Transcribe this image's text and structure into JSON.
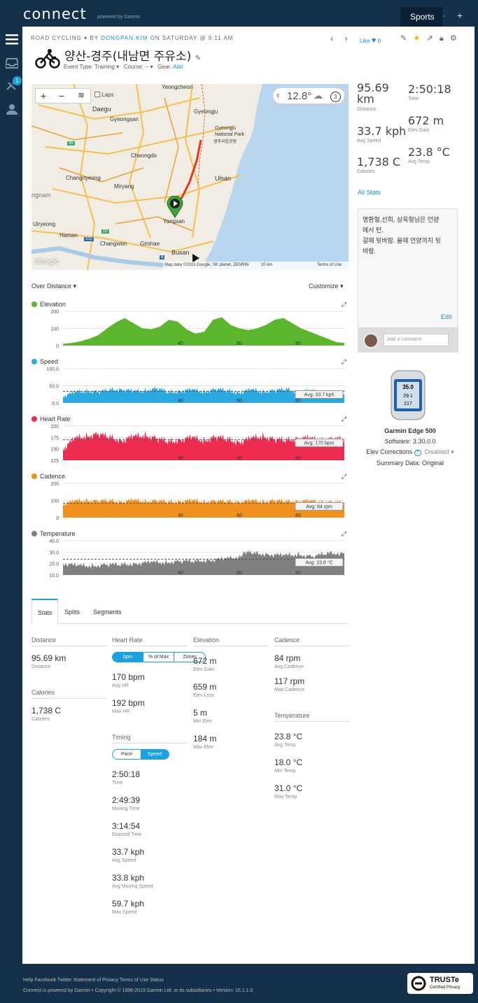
{
  "app": {
    "logo": "connect",
    "logo_sub": "powered by Garmin",
    "sports_label": "Sports",
    "sports_sep": "-",
    "plus": "+",
    "notif_count": "1"
  },
  "activity": {
    "type": "ROAD CYCLING",
    "by": "BY",
    "author": "DONGPAN.KIM",
    "when": "ON SATURDAY @ 9:11 AM",
    "title": "양산-경주(내남면 주유소)",
    "event_type": "Event Type: Training ▾",
    "course": "Course: -- ▾",
    "gear": "Gear:",
    "gear_add": "Add",
    "like": "Like",
    "like_count": "0"
  },
  "map": {
    "laps": "Laps",
    "temp": "12.8°",
    "weather_count": "3",
    "footer": "Map data ©2015 Google, SK planet, ZENRIN",
    "scale": "20 km",
    "terms": "Terms of Use",
    "google": "Google",
    "labels": [
      {
        "t": "Yeongcheon"
      },
      {
        "t": "Daegu"
      },
      {
        "t": "Gyeongju"
      },
      {
        "t": "Gyeongsan"
      },
      {
        "t": "Gyeongju National Park"
      },
      {
        "t": "경주국립공원"
      },
      {
        "t": "Cheongdo"
      },
      {
        "t": "Changnyeong"
      },
      {
        "t": "Miryang"
      },
      {
        "t": "Ulsan"
      },
      {
        "t": "ngnam"
      },
      {
        "t": "Uiryeong"
      },
      {
        "t": "Yangsan"
      },
      {
        "t": "Haman"
      },
      {
        "t": "Changwon"
      },
      {
        "t": "Gimhae"
      },
      {
        "t": "Busan"
      },
      {
        "t": "45"
      },
      {
        "t": "10"
      },
      {
        "t": "102"
      },
      {
        "t": "6"
      }
    ]
  },
  "summary": {
    "distance": "95.69 km",
    "distance_l": "Distance",
    "time": "2:50:18",
    "time_l": "Time",
    "elev_gain": "672 m",
    "elev_gain_l": "Elev Gain",
    "avg_speed": "33.7 kph",
    "avg_speed_l": "Avg Speed",
    "calories": "1,738 C",
    "calories_l": "Calories",
    "avg_temp": "23.8 °C",
    "avg_temp_l": "Avg Temp",
    "all_stats": "All Stats"
  },
  "notes": {
    "lines": [
      "명환형,선희, 상욱형님은 언양",
      "에서 턴.",
      "갈때 뒷바람. 올때 언양까지 뒷",
      "바람."
    ],
    "edit": "Edit",
    "comment_placeholder": "Add a comment."
  },
  "device": {
    "name": "Garmin Edge 500",
    "software": "Software: 3.30.0.0",
    "elev_corr": "Elev Corrections",
    "elev_help": "?",
    "elev_status": ": Disabled ▾",
    "summary": "Summary Data: Original",
    "screen_vals": [
      "35.0",
      "29.1",
      "217"
    ]
  },
  "charts_header": {
    "over_distance": "Over Distance ▾",
    "customize": "Customize ▾"
  },
  "chart_data": [
    {
      "type": "area",
      "title": "Elevation",
      "color": "#5bb52d",
      "yticks": [
        "200",
        "100",
        "0"
      ],
      "ylim": [
        0,
        200
      ],
      "xticks": [
        "40",
        "60",
        "80"
      ],
      "xlim": [
        0,
        95.69
      ],
      "x": [
        0,
        3,
        6,
        9,
        12,
        15,
        18,
        21,
        24,
        27,
        30,
        33,
        36,
        39,
        42,
        45,
        48,
        51,
        54,
        57,
        60,
        63,
        66,
        69,
        72,
        75,
        78,
        81,
        84,
        87,
        90,
        93,
        95.69
      ],
      "values": [
        10,
        15,
        25,
        40,
        60,
        100,
        135,
        160,
        130,
        100,
        95,
        110,
        150,
        140,
        95,
        70,
        80,
        150,
        165,
        120,
        100,
        90,
        100,
        120,
        150,
        160,
        130,
        100,
        80,
        60,
        40,
        20,
        15
      ],
      "avg": null,
      "avg_label": ""
    },
    {
      "type": "area",
      "title": "Speed",
      "color": "#29a9e0",
      "yticks": [
        "100.0",
        "50.0",
        "0.0"
      ],
      "ylim": [
        0,
        100
      ],
      "xticks": [
        "40",
        "60",
        "80"
      ],
      "xlim": [
        0,
        95.69
      ],
      "x": [
        0,
        4,
        8,
        12,
        16,
        20,
        24,
        28,
        32,
        36,
        40,
        44,
        48,
        52,
        56,
        60,
        64,
        68,
        72,
        76,
        80,
        84,
        88,
        92,
        95.69
      ],
      "values": [
        20,
        30,
        35,
        32,
        38,
        40,
        33,
        36,
        42,
        30,
        35,
        38,
        32,
        40,
        35,
        30,
        38,
        33,
        36,
        40,
        32,
        35,
        30,
        33,
        28
      ],
      "avg": 33.7,
      "avg_label": "Avg: 33.7 kph"
    },
    {
      "type": "area",
      "title": "Heart Rate",
      "color": "#ee2c50",
      "yticks": [
        "200",
        "175",
        "150",
        "125"
      ],
      "ylim": [
        125,
        200
      ],
      "xticks": [
        "40",
        "60",
        "80"
      ],
      "xlim": [
        0,
        95.69
      ],
      "x": [
        0,
        4,
        8,
        12,
        16,
        20,
        24,
        28,
        32,
        36,
        40,
        44,
        48,
        52,
        56,
        60,
        64,
        68,
        72,
        76,
        80,
        84,
        88,
        92,
        95.69
      ],
      "values": [
        150,
        172,
        178,
        182,
        175,
        168,
        176,
        180,
        172,
        165,
        170,
        174,
        168,
        176,
        170,
        165,
        172,
        178,
        170,
        168,
        174,
        172,
        168,
        172,
        170
      ],
      "avg": 170,
      "avg_label": "Avg: 170 bpm"
    },
    {
      "type": "area",
      "title": "Cadence",
      "color": "#ef9020",
      "yticks": [
        "200",
        "100",
        "0"
      ],
      "ylim": [
        0,
        200
      ],
      "xticks": [
        "40",
        "60",
        "80"
      ],
      "xlim": [
        0,
        95.69
      ],
      "x": [
        0,
        4,
        8,
        12,
        16,
        20,
        24,
        28,
        32,
        36,
        40,
        44,
        48,
        52,
        56,
        60,
        64,
        68,
        72,
        76,
        80,
        84,
        88,
        92,
        95.69
      ],
      "values": [
        80,
        95,
        100,
        96,
        98,
        92,
        100,
        95,
        97,
        90,
        95,
        98,
        93,
        96,
        94,
        92,
        97,
        95,
        98,
        94,
        96,
        95,
        92,
        90,
        85
      ],
      "avg": 84,
      "avg_label": "Avg: 84 rpm"
    },
    {
      "type": "area",
      "title": "Temperature",
      "color": "#808080",
      "yticks": [
        "40.0",
        "30.0",
        "20.0",
        "10.0"
      ],
      "ylim": [
        10,
        40
      ],
      "xticks": [
        "40",
        "60",
        "80"
      ],
      "xlim": [
        0,
        95.69
      ],
      "x": [
        0,
        5,
        10,
        15,
        20,
        25,
        30,
        35,
        40,
        45,
        50,
        55,
        60,
        62,
        65,
        70,
        75,
        80,
        85,
        90,
        95.69
      ],
      "values": [
        20,
        18,
        18,
        19,
        19,
        20,
        21,
        21,
        22,
        22,
        23,
        24,
        26,
        30,
        29,
        28,
        27,
        28,
        26,
        29,
        29
      ],
      "avg": 23.8,
      "avg_label": "Avg: 23.8 °C"
    }
  ],
  "tabs": {
    "stats": "Stats",
    "splits": "Splits",
    "segments": "Segments"
  },
  "stats": {
    "distance": {
      "h": "Distance",
      "items": [
        {
          "v": "95.69 km",
          "l": "Distance"
        }
      ]
    },
    "calories": {
      "h": "Calories",
      "items": [
        {
          "v": "1,738 C",
          "l": "Calories"
        }
      ]
    },
    "heart": {
      "h": "Heart Rate",
      "seg": [
        "bpm",
        "% of Max",
        "Zones"
      ],
      "items": [
        {
          "v": "170 bpm",
          "l": "Avg HR"
        },
        {
          "v": "192 bpm",
          "l": "Max HR"
        }
      ]
    },
    "timing": {
      "h": "Timing",
      "seg": [
        "Pace",
        "Speed"
      ],
      "items": [
        {
          "v": "2:50:18",
          "l": "Time"
        },
        {
          "v": "2:49:39",
          "l": "Moving Time"
        },
        {
          "v": "3:14:54",
          "l": "Elapsed Time"
        },
        {
          "v": "33.7 kph",
          "l": "Avg Speed"
        },
        {
          "v": "33.8 kph",
          "l": "Avg Moving Speed"
        },
        {
          "v": "59.7 kph",
          "l": "Max Speed"
        }
      ]
    },
    "elevation": {
      "h": "Elevation",
      "items": [
        {
          "v": "672 m",
          "l": "Elev Gain"
        },
        {
          "v": "659 m",
          "l": "Elev Loss"
        },
        {
          "v": "5 m",
          "l": "Min Elev"
        },
        {
          "v": "184 m",
          "l": "Max Elev"
        }
      ]
    },
    "cadence": {
      "h": "Cadence",
      "items": [
        {
          "v": "84 rpm",
          "l": "Avg Cadence"
        },
        {
          "v": "117 rpm",
          "l": "Max Cadence"
        }
      ]
    },
    "temperature": {
      "h": "Temperature",
      "items": [
        {
          "v": "23.8 °C",
          "l": "Avg Temp"
        },
        {
          "v": "18.0 °C",
          "l": "Min Temp"
        },
        {
          "v": "31.0 °C",
          "l": "Max Temp"
        }
      ]
    }
  },
  "footer": {
    "links": "Help Facebook Twitter Statement of Privacy Terms of Use Status",
    "copy": "Connect is powered by Garmin • Copyright © 1996-2015 Garmin Ltd. or its subsidiaries • Version: 15.1.1.0",
    "truste": "TRUSTe",
    "truste_sub": "Certified Privacy"
  }
}
